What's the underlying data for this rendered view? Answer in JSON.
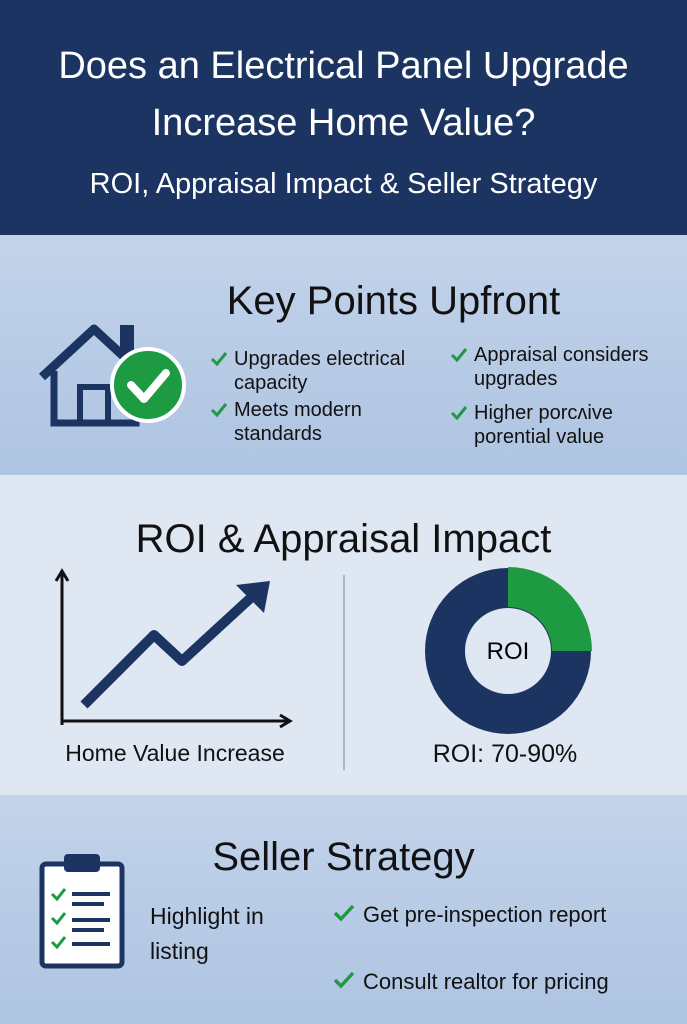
{
  "header": {
    "title": "Does an Electrical Panel Upgrade Increase Home Value?",
    "subtitle": "ROI, Appraisal Impact & Seller Strategy"
  },
  "key_points": {
    "heading": "Key Points Upfront",
    "items": [
      "Upgrades electrical capacity",
      "Meets modern standards",
      "Appraisal considers upgrades",
      "Higher porcʌive porential value"
    ]
  },
  "roi": {
    "heading": "ROI & Appraisal Impact",
    "chart_label": "Home Value Increase",
    "donut_label": "ROI",
    "roi_text": "ROI: 70-90%"
  },
  "seller_strategy": {
    "heading": "Seller Strategy",
    "highlight": "Highlight in listing",
    "items": [
      "Get pre-inspection report",
      "Consult realtor for pricing"
    ]
  }
}
